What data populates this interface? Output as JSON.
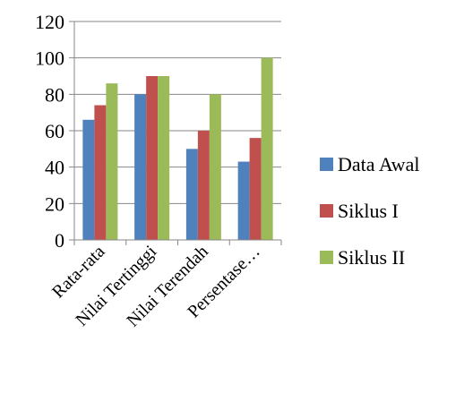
{
  "chart_data": {
    "type": "bar",
    "categories": [
      "Rata-rata",
      "Nilai Tertinggi",
      "Nilai Terendah",
      "Persentase…"
    ],
    "series": [
      {
        "name": "Data Awal",
        "color": "#4f81bd",
        "values": [
          66,
          80,
          50,
          43
        ]
      },
      {
        "name": "Siklus I",
        "color": "#c0504d",
        "values": [
          74,
          90,
          60,
          56
        ]
      },
      {
        "name": "Siklus II",
        "color": "#9bbb59",
        "values": [
          86,
          90,
          80,
          100
        ]
      }
    ],
    "y_ticks": [
      "0",
      "20",
      "40",
      "60",
      "80",
      "100",
      "120"
    ],
    "ylim": [
      0,
      120
    ],
    "grid": true,
    "legend_position": "right"
  }
}
